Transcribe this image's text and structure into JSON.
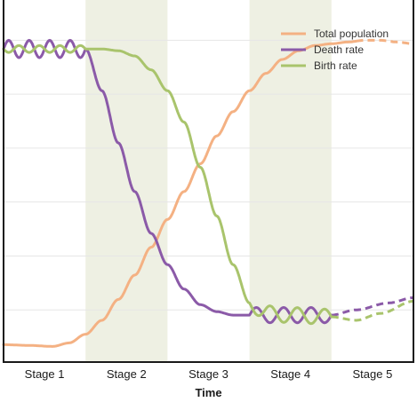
{
  "chart_data": {
    "type": "line",
    "title": "",
    "xlabel": "Time",
    "ylabel": "",
    "categories": [
      "Stage 1",
      "Stage 2",
      "Stage 3",
      "Stage 4",
      "Stage 5"
    ],
    "shaded_stages": [
      "Stage 2",
      "Stage 4"
    ],
    "xlim": [
      0,
      5
    ],
    "ylim": [
      0,
      10
    ],
    "grid": "horizontal",
    "legend": "top-right",
    "colors": {
      "population": "#f4b183",
      "death": "#8b5aa8",
      "birth": "#a9c46c",
      "band": "#eef0e3",
      "grid": "#e6e6e6",
      "axis": "#1a1a1a"
    },
    "series": [
      {
        "name": "Total population",
        "key": "population",
        "dashed_from_x": 4.3,
        "points": [
          [
            0,
            0.5
          ],
          [
            0.3,
            0.48
          ],
          [
            0.6,
            0.45
          ],
          [
            0.8,
            0.55
          ],
          [
            1.0,
            0.8
          ],
          [
            1.2,
            1.2
          ],
          [
            1.4,
            1.8
          ],
          [
            1.6,
            2.5
          ],
          [
            1.8,
            3.3
          ],
          [
            2.0,
            4.1
          ],
          [
            2.2,
            4.9
          ],
          [
            2.4,
            5.7
          ],
          [
            2.6,
            6.5
          ],
          [
            2.8,
            7.2
          ],
          [
            3.0,
            7.8
          ],
          [
            3.2,
            8.3
          ],
          [
            3.4,
            8.7
          ],
          [
            3.6,
            8.95
          ],
          [
            3.8,
            9.1
          ],
          [
            4.0,
            9.15
          ],
          [
            4.2,
            9.2
          ],
          [
            4.4,
            9.25
          ],
          [
            4.6,
            9.25
          ],
          [
            4.8,
            9.2
          ],
          [
            5.0,
            9.15
          ]
        ]
      },
      {
        "name": "Death rate",
        "key": "death",
        "oscillations": [
          {
            "from": 0,
            "to": 1.0,
            "amplitude": 0.25,
            "waves": 4
          },
          {
            "from": 3.0,
            "to": 4.0,
            "amplitude": 0.22,
            "waves": 3
          }
        ],
        "dashed_from_x": 4.0,
        "points": [
          [
            0,
            9.0
          ],
          [
            0.5,
            9.0
          ],
          [
            1.0,
            9.0
          ],
          [
            1.2,
            7.8
          ],
          [
            1.4,
            6.3
          ],
          [
            1.6,
            4.9
          ],
          [
            1.8,
            3.7
          ],
          [
            2.0,
            2.8
          ],
          [
            2.2,
            2.1
          ],
          [
            2.4,
            1.65
          ],
          [
            2.6,
            1.45
          ],
          [
            2.8,
            1.35
          ],
          [
            3.0,
            1.35
          ],
          [
            3.5,
            1.35
          ],
          [
            4.0,
            1.35
          ],
          [
            4.3,
            1.5
          ],
          [
            4.7,
            1.7
          ],
          [
            5.0,
            1.85
          ]
        ]
      },
      {
        "name": "Birth rate",
        "key": "birth",
        "oscillations": [
          {
            "from": 0,
            "to": 1.0,
            "amplitude": 0.1,
            "waves": 4
          },
          {
            "from": 3.0,
            "to": 4.0,
            "amplitude": 0.22,
            "waves": 3
          }
        ],
        "dashed_from_x": 4.0,
        "points": [
          [
            0,
            9.0
          ],
          [
            0.5,
            9.0
          ],
          [
            1.0,
            9.0
          ],
          [
            1.2,
            9.0
          ],
          [
            1.4,
            8.95
          ],
          [
            1.6,
            8.8
          ],
          [
            1.8,
            8.4
          ],
          [
            2.0,
            7.8
          ],
          [
            2.2,
            6.9
          ],
          [
            2.4,
            5.6
          ],
          [
            2.6,
            4.2
          ],
          [
            2.8,
            2.8
          ],
          [
            3.0,
            1.7
          ],
          [
            3.2,
            1.4
          ],
          [
            3.5,
            1.35
          ],
          [
            4.0,
            1.3
          ],
          [
            4.3,
            1.2
          ],
          [
            4.6,
            1.4
          ],
          [
            5.0,
            1.75
          ]
        ]
      }
    ]
  }
}
